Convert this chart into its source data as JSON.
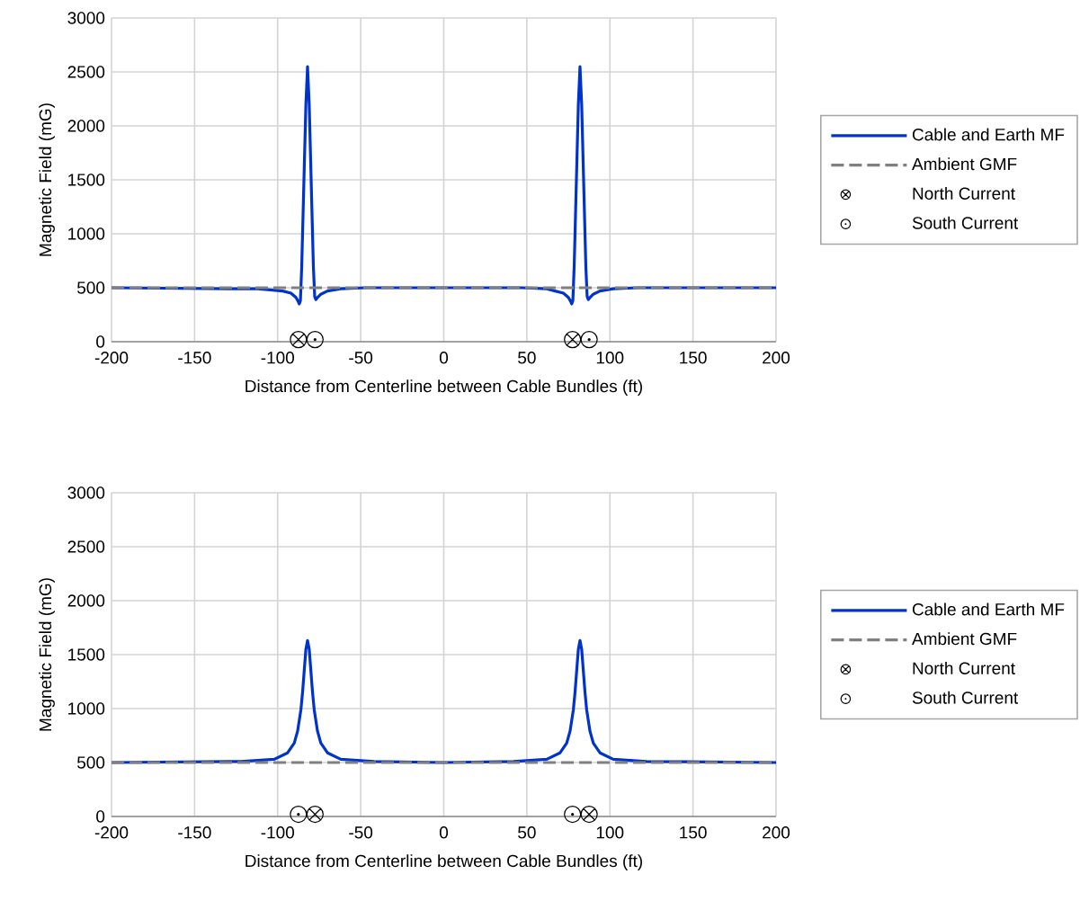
{
  "chart_data": [
    {
      "type": "line",
      "xlabel": "Distance from Centerline between Cable Bundles (ft)",
      "ylabel": "Magnetic Field (mG)",
      "xlim": [
        -200,
        200
      ],
      "ylim": [
        0,
        3000
      ],
      "xticks": [
        -200,
        -150,
        -100,
        -50,
        0,
        50,
        100,
        150,
        200
      ],
      "yticks": [
        0,
        500,
        1000,
        1500,
        2000,
        2500,
        3000
      ],
      "grid": true,
      "legend": "right",
      "series": [
        {
          "name": "Cable and Earth MF",
          "line_style": "solid",
          "color": "#0033cc",
          "x": [
            -200,
            -120,
            -112,
            -97,
            -92,
            -89,
            -87.5,
            -87,
            -86.3,
            -85.5,
            -84,
            -83,
            -82,
            -81,
            -80,
            -78.5,
            -77.7,
            -77,
            -76,
            -74,
            -70,
            -62,
            -47,
            -20,
            0,
            20,
            47,
            62,
            67,
            72,
            75,
            76.5,
            77,
            77.7,
            78.5,
            80,
            81,
            82,
            83,
            84,
            85.5,
            86.3,
            87,
            88,
            90,
            94,
            102,
            117,
            200
          ],
          "values": [
            500,
            490,
            490,
            470,
            450,
            410,
            370,
            350,
            380,
            700,
            1600,
            2200,
            2550,
            2200,
            1600,
            700,
            420,
            390,
            410,
            440,
            470,
            490,
            500,
            500,
            500,
            500,
            500,
            490,
            470,
            450,
            410,
            370,
            350,
            380,
            700,
            1600,
            2200,
            2550,
            2200,
            1600,
            700,
            420,
            390,
            410,
            440,
            470,
            490,
            500,
            500
          ]
        },
        {
          "name": "Ambient GMF",
          "line_style": "dashed",
          "color": "#808080",
          "x": [
            -200,
            200
          ],
          "values": [
            500,
            500
          ]
        },
        {
          "name": "North Current",
          "type": "scatter",
          "marker": "cross",
          "color": "#000000",
          "x": [
            -87.5,
            77.5
          ],
          "values": [
            20,
            20
          ]
        },
        {
          "name": "South Current",
          "type": "scatter",
          "marker": "circle",
          "color": "#000000",
          "x": [
            -77.5,
            87.5
          ],
          "values": [
            20,
            20
          ]
        }
      ]
    },
    {
      "type": "line",
      "xlabel": "Distance from Centerline between Cable Bundles (ft)",
      "ylabel": "Magnetic Field (mG)",
      "xlim": [
        -200,
        200
      ],
      "ylim": [
        0,
        3000
      ],
      "xticks": [
        -200,
        -150,
        -100,
        -50,
        0,
        50,
        100,
        150,
        200
      ],
      "yticks": [
        0,
        500,
        1000,
        1500,
        2000,
        2500,
        3000
      ],
      "grid": true,
      "legend": "right",
      "series": [
        {
          "name": "Cable and Earth MF",
          "line_style": "solid",
          "color": "#0033cc",
          "x": [
            -200,
            -122,
            -102,
            -94,
            -90,
            -88,
            -86,
            -85,
            -84,
            -83,
            -82,
            -81,
            -80,
            -79,
            -78,
            -76,
            -74,
            -70,
            -62,
            -42,
            0,
            42,
            62,
            70,
            74,
            76,
            78,
            79,
            80,
            81,
            82,
            83,
            84,
            85,
            86,
            88,
            90,
            94,
            102,
            122,
            200
          ],
          "values": [
            500,
            510,
            530,
            590,
            680,
            790,
            990,
            1150,
            1350,
            1550,
            1630,
            1550,
            1350,
            1150,
            990,
            790,
            680,
            590,
            530,
            510,
            500,
            510,
            530,
            590,
            680,
            790,
            990,
            1150,
            1350,
            1550,
            1630,
            1550,
            1350,
            1150,
            990,
            790,
            680,
            590,
            530,
            510,
            500
          ]
        },
        {
          "name": "Ambient GMF",
          "line_style": "dashed",
          "color": "#808080",
          "x": [
            -200,
            200
          ],
          "values": [
            500,
            500
          ]
        },
        {
          "name": "North Current",
          "type": "scatter",
          "marker": "cross",
          "color": "#000000",
          "x": [
            -77.5,
            87.5
          ],
          "values": [
            20,
            20
          ]
        },
        {
          "name": "South Current",
          "type": "scatter",
          "marker": "circle",
          "color": "#000000",
          "x": [
            -87.5,
            77.5
          ],
          "values": [
            20,
            20
          ]
        }
      ]
    }
  ]
}
